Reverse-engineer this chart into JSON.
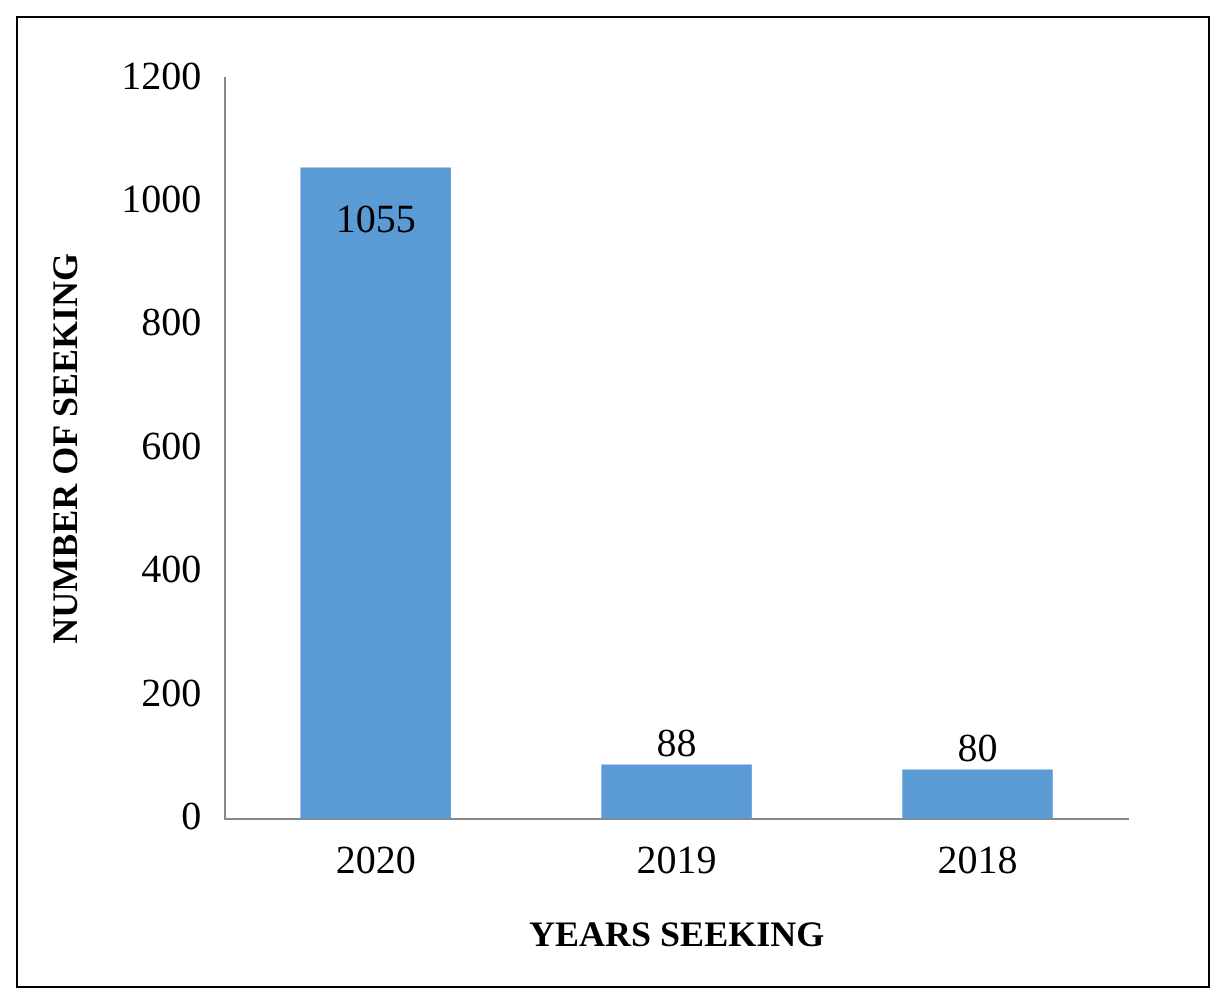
{
  "chart_data": {
    "type": "bar",
    "xlabel": "YEARS SEEKING",
    "ylabel": "NUMBER OF SEEKING",
    "categories": [
      "2020",
      "2019",
      "2018"
    ],
    "values": [
      1055,
      88,
      80
    ],
    "color": "#5b9bd5",
    "ylim": [
      0,
      1200
    ],
    "yticks": [
      0,
      200,
      400,
      600,
      800,
      1000,
      1200
    ],
    "grid": false,
    "data_labels": true,
    "legend": false
  }
}
